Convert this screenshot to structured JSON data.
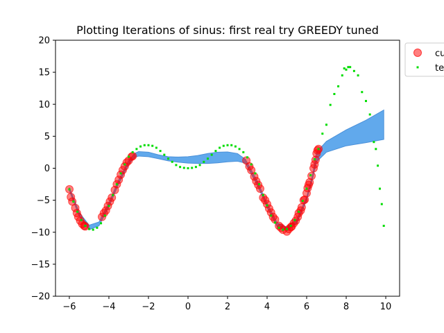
{
  "chart_data": {
    "type": "scatter",
    "title": "Plotting Iterations of sinus: first real try GREEDY tuned",
    "xlabel": "",
    "ylabel": "",
    "xlim": [
      -6.7,
      10.7
    ],
    "ylim": [
      -20,
      20
    ],
    "x_ticks": [
      -6,
      -4,
      -2,
      0,
      2,
      4,
      6,
      8,
      10
    ],
    "y_ticks": [
      -20,
      -15,
      -10,
      -5,
      0,
      5,
      10,
      15,
      20
    ],
    "x_tick_labels": [
      "−6",
      "−4",
      "−2",
      "0",
      "2",
      "4",
      "6",
      "8",
      "10"
    ],
    "y_tick_labels": [
      "−20",
      "−15",
      "−10",
      "−5",
      "0",
      "5",
      "10",
      "15",
      "20"
    ],
    "grid": false,
    "legend": {
      "placement": "outside-top-right",
      "entries": [
        {
          "name": "cu",
          "marker": "circle",
          "color": "#ff0000"
        },
        {
          "name": "te",
          "marker": "square",
          "color": "#00dd00"
        }
      ]
    },
    "band": {
      "color": "#61a9ec",
      "edge_color": "#4a90d9",
      "upper": [
        [
          -6.0,
          -3.0
        ],
        [
          -5.5,
          -6.9
        ],
        [
          -5.0,
          -8.9
        ],
        [
          -4.5,
          -8.4
        ],
        [
          -4.0,
          -5.4
        ],
        [
          -3.5,
          -1.8
        ],
        [
          -3.0,
          1.2
        ],
        [
          -2.7,
          2.3
        ],
        [
          -2.5,
          2.6
        ],
        [
          -2.0,
          2.5
        ],
        [
          -1.5,
          2.1
        ],
        [
          -1.0,
          1.8
        ],
        [
          -0.5,
          1.75
        ],
        [
          0.0,
          1.8
        ],
        [
          0.5,
          2.0
        ],
        [
          1.0,
          2.3
        ],
        [
          1.5,
          2.5
        ],
        [
          2.0,
          2.55
        ],
        [
          2.5,
          2.3
        ],
        [
          2.9,
          1.4
        ],
        [
          3.5,
          -2.0
        ],
        [
          4.0,
          -5.5
        ],
        [
          4.5,
          -8.5
        ],
        [
          5.0,
          -9.2
        ],
        [
          5.5,
          -8.0
        ],
        [
          6.0,
          -4.5
        ],
        [
          6.3,
          -1.0
        ],
        [
          6.5,
          2.5
        ],
        [
          7.0,
          4.2
        ],
        [
          8.0,
          6.0
        ],
        [
          9.0,
          7.5
        ],
        [
          9.9,
          9.1
        ]
      ],
      "lower": [
        [
          9.9,
          4.5
        ],
        [
          9.0,
          4.0
        ],
        [
          8.0,
          3.5
        ],
        [
          7.0,
          2.5
        ],
        [
          6.5,
          1.0
        ],
        [
          6.3,
          -1.6
        ],
        [
          6.0,
          -5.0
        ],
        [
          5.5,
          -8.6
        ],
        [
          5.0,
          -9.8
        ],
        [
          4.5,
          -9.1
        ],
        [
          4.0,
          -6.1
        ],
        [
          3.5,
          -2.6
        ],
        [
          2.9,
          0.8
        ],
        [
          2.5,
          1.1
        ],
        [
          2.0,
          1.0
        ],
        [
          1.5,
          0.85
        ],
        [
          1.0,
          0.75
        ],
        [
          0.5,
          0.75
        ],
        [
          0.0,
          0.8
        ],
        [
          -0.5,
          0.95
        ],
        [
          -1.0,
          1.15
        ],
        [
          -1.5,
          1.5
        ],
        [
          -2.0,
          1.8
        ],
        [
          -2.5,
          1.9
        ],
        [
          -2.7,
          1.7
        ],
        [
          -3.0,
          0.6
        ],
        [
          -3.5,
          -2.4
        ],
        [
          -4.0,
          -6.0
        ],
        [
          -4.5,
          -9.0
        ],
        [
          -5.0,
          -9.6
        ],
        [
          -5.5,
          -7.5
        ],
        [
          -6.0,
          -3.5
        ]
      ]
    },
    "series": [
      {
        "name": "cu",
        "marker": "circle",
        "color": "#ff0000",
        "alpha": 0.5,
        "points": [
          [
            -6.0,
            -3.3
          ],
          [
            -5.92,
            -4.5
          ],
          [
            -5.85,
            -5.2
          ],
          [
            -5.7,
            -6.2
          ],
          [
            -5.62,
            -7.0
          ],
          [
            -5.55,
            -7.6
          ],
          [
            -5.45,
            -8.2
          ],
          [
            -5.35,
            -8.7
          ],
          [
            -5.25,
            -9.0
          ],
          [
            -5.2,
            -9.1
          ],
          [
            -4.35,
            -7.6
          ],
          [
            -4.25,
            -7.0
          ],
          [
            -4.15,
            -6.6
          ],
          [
            -4.05,
            -5.9
          ],
          [
            -3.95,
            -5.2
          ],
          [
            -3.85,
            -4.6
          ],
          [
            -3.7,
            -3.4
          ],
          [
            -3.6,
            -2.5
          ],
          [
            -3.5,
            -1.8
          ],
          [
            -3.4,
            -1.0
          ],
          [
            -3.3,
            -0.3
          ],
          [
            -3.2,
            0.3
          ],
          [
            -3.1,
            0.9
          ],
          [
            -3.0,
            1.2
          ],
          [
            -2.85,
            1.8
          ],
          [
            -2.8,
            1.9
          ],
          [
            2.95,
            1.2
          ],
          [
            3.1,
            0.3
          ],
          [
            3.2,
            -0.3
          ],
          [
            3.35,
            -1.3
          ],
          [
            3.45,
            -2.0
          ],
          [
            3.55,
            -2.6
          ],
          [
            3.65,
            -3.2
          ],
          [
            3.8,
            -4.6
          ],
          [
            3.9,
            -5.0
          ],
          [
            4.0,
            -5.6
          ],
          [
            4.1,
            -6.3
          ],
          [
            4.2,
            -6.9
          ],
          [
            4.3,
            -7.6
          ],
          [
            4.4,
            -8.0
          ],
          [
            4.6,
            -9.0
          ],
          [
            4.7,
            -9.3
          ],
          [
            4.8,
            -9.6
          ],
          [
            5.0,
            -9.9
          ],
          [
            5.1,
            -9.5
          ],
          [
            5.2,
            -9.2
          ],
          [
            5.25,
            -9.1
          ],
          [
            5.35,
            -8.6
          ],
          [
            5.45,
            -8.2
          ],
          [
            5.55,
            -7.6
          ],
          [
            5.6,
            -7.0
          ],
          [
            5.7,
            -6.6
          ],
          [
            5.75,
            -6.1
          ],
          [
            5.85,
            -5.0
          ],
          [
            5.9,
            -4.9
          ],
          [
            6.0,
            -3.9
          ],
          [
            6.05,
            -3.1
          ],
          [
            6.1,
            -2.6
          ],
          [
            6.15,
            -2.2
          ],
          [
            6.25,
            -1.2
          ],
          [
            6.35,
            0.0
          ],
          [
            6.4,
            0.6
          ],
          [
            6.45,
            1.3
          ],
          [
            6.5,
            2.3
          ],
          [
            6.55,
            2.8
          ],
          [
            6.6,
            3.0
          ]
        ]
      },
      {
        "name": "te",
        "marker": "square",
        "color": "#00dd00",
        "alpha": 1.0,
        "points": [
          [
            -6.0,
            -3.3
          ],
          [
            -5.8,
            -5.2
          ],
          [
            -5.6,
            -6.8
          ],
          [
            -5.4,
            -8.1
          ],
          [
            -5.2,
            -9.0
          ],
          [
            -5.0,
            -9.5
          ],
          [
            -4.8,
            -9.6
          ],
          [
            -4.6,
            -9.3
          ],
          [
            -4.4,
            -8.6
          ],
          [
            -4.2,
            -7.4
          ],
          [
            -4.0,
            -5.9
          ],
          [
            -3.8,
            -4.2
          ],
          [
            -3.6,
            -2.5
          ],
          [
            -3.4,
            -0.8
          ],
          [
            -3.2,
            0.6
          ],
          [
            -3.0,
            1.8
          ],
          [
            -2.8,
            2.5
          ],
          [
            -2.6,
            3.0
          ],
          [
            -2.4,
            3.4
          ],
          [
            -2.2,
            3.6
          ],
          [
            -2.0,
            3.6
          ],
          [
            -1.8,
            3.5
          ],
          [
            -1.6,
            3.2
          ],
          [
            -1.4,
            2.7
          ],
          [
            -1.2,
            2.1
          ],
          [
            -1.0,
            1.5
          ],
          [
            -0.8,
            1.0
          ],
          [
            -0.6,
            0.5
          ],
          [
            -0.4,
            0.2
          ],
          [
            -0.2,
            0.05
          ],
          [
            0.0,
            0.0
          ],
          [
            0.2,
            0.05
          ],
          [
            0.4,
            0.2
          ],
          [
            0.6,
            0.5
          ],
          [
            0.8,
            1.0
          ],
          [
            1.0,
            1.5
          ],
          [
            1.2,
            2.1
          ],
          [
            1.4,
            2.7
          ],
          [
            1.6,
            3.2
          ],
          [
            1.8,
            3.5
          ],
          [
            2.0,
            3.6
          ],
          [
            2.2,
            3.6
          ],
          [
            2.4,
            3.4
          ],
          [
            2.6,
            3.0
          ],
          [
            2.8,
            2.5
          ],
          [
            3.0,
            1.7
          ],
          [
            3.2,
            0.6
          ],
          [
            3.4,
            -0.8
          ],
          [
            3.6,
            -2.5
          ],
          [
            3.8,
            -4.2
          ],
          [
            4.0,
            -5.8
          ],
          [
            4.2,
            -7.4
          ],
          [
            4.4,
            -8.5
          ],
          [
            4.6,
            -9.3
          ],
          [
            4.8,
            -9.6
          ],
          [
            5.0,
            -9.5
          ],
          [
            5.2,
            -9.0
          ],
          [
            5.4,
            -8.1
          ],
          [
            5.6,
            -6.8
          ],
          [
            5.8,
            -5.1
          ],
          [
            6.0,
            -3.2
          ],
          [
            6.2,
            -1.1
          ],
          [
            6.4,
            1.4
          ],
          [
            6.6,
            3.0
          ],
          [
            6.8,
            5.4
          ],
          [
            7.0,
            6.8
          ],
          [
            7.2,
            9.9
          ],
          [
            7.4,
            11.6
          ],
          [
            7.6,
            12.8
          ],
          [
            7.8,
            14.5
          ],
          [
            7.9,
            15.6
          ],
          [
            8.0,
            15.4
          ],
          [
            8.1,
            15.8
          ],
          [
            8.2,
            15.8
          ],
          [
            8.4,
            15.2
          ],
          [
            8.6,
            14.5
          ],
          [
            8.8,
            11.9
          ],
          [
            9.0,
            10.5
          ],
          [
            9.2,
            8.4
          ],
          [
            9.4,
            4.1
          ],
          [
            9.5,
            3.0
          ],
          [
            9.6,
            0.4
          ],
          [
            9.7,
            -3.2
          ],
          [
            9.8,
            -5.6
          ],
          [
            9.9,
            -9.0
          ]
        ]
      }
    ]
  }
}
